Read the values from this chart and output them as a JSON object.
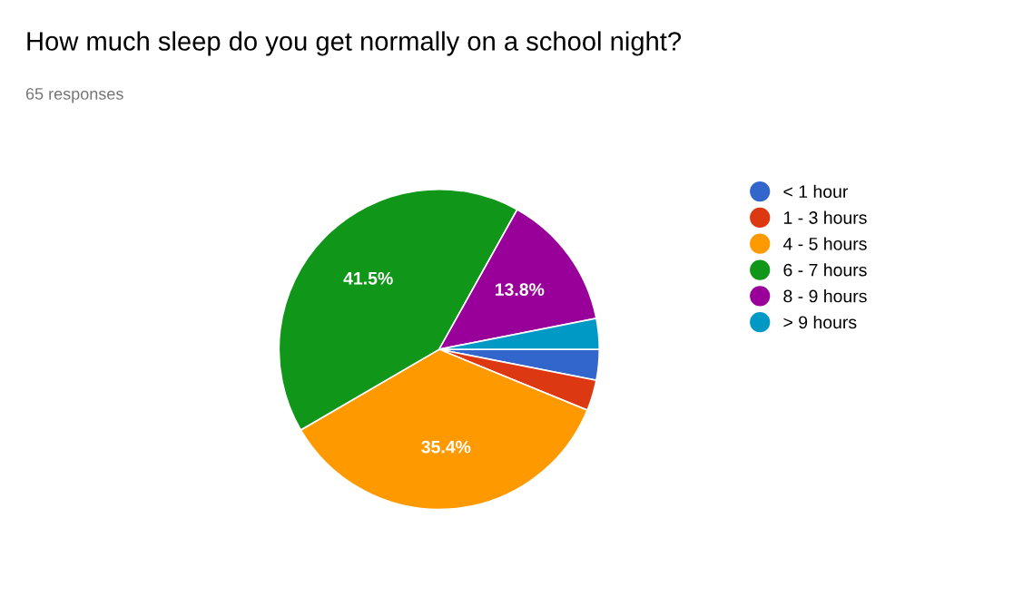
{
  "chart_data": {
    "type": "pie",
    "title": "How much sleep do you get normally on a school night?",
    "subtitle": "65 responses",
    "categories": [
      "< 1 hour",
      "1 - 3 hours",
      "4 - 5 hours",
      "6 - 7 hours",
      "8 - 9 hours",
      "> 9 hours"
    ],
    "values": [
      3.1,
      3.1,
      35.4,
      41.5,
      13.8,
      3.1
    ],
    "value_labels": [
      null,
      null,
      "35.4%",
      "41.5%",
      "13.8%",
      null
    ],
    "colors": [
      "#3366cc",
      "#dc3912",
      "#ff9900",
      "#109618",
      "#990099",
      "#0099c6"
    ],
    "legend": "right"
  }
}
